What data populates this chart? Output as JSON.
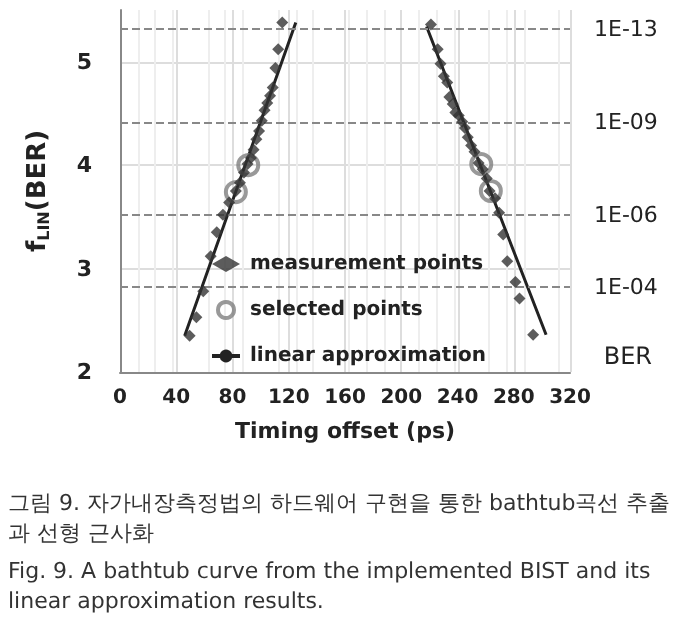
{
  "chart_data": {
    "type": "scatter",
    "xlabel": "Timing offset (ps)",
    "ylabel": "f$_{LIN}$(BER)",
    "y2label": "BER",
    "xlim": [
      0,
      320
    ],
    "xticks": [
      0,
      40,
      80,
      120,
      160,
      200,
      240,
      280,
      320
    ],
    "ylim": [
      2,
      5.5
    ],
    "yticks": [
      2,
      3,
      4,
      5
    ],
    "grid": true,
    "legend": "bottom",
    "series": [
      {
        "name": "measurement points",
        "type": "scatter",
        "marker": "diamond",
        "color": "#333333",
        "x": [
          49.5,
          54.3,
          59.2,
          64.5,
          68.8,
          73.2,
          77.6,
          82.4,
          85.3,
          88.2,
          90.7,
          93.1,
          95.0,
          97.0,
          98.9,
          100.8,
          102.8,
          104.7,
          106.7,
          108.6,
          110.5,
          112.5,
          115.4,
          221.1,
          225.9,
          227.9,
          230.3,
          232.7,
          234.2,
          236.6,
          238.5,
          240.9,
          243.4,
          245.3,
          247.3,
          249.7,
          252.1,
          255.0,
          257.9,
          260.8,
          262.8,
          266.7,
          269.6,
          272.5,
          275.4,
          281.2,
          284.1,
          293.8
        ],
        "values": [
          2.35,
          2.53,
          2.78,
          3.12,
          3.35,
          3.52,
          3.64,
          3.75,
          3.83,
          3.93,
          4.01,
          4.07,
          4.15,
          4.25,
          4.33,
          4.43,
          4.53,
          4.6,
          4.67,
          4.75,
          4.94,
          5.12,
          5.38,
          5.36,
          5.12,
          4.98,
          4.86,
          4.8,
          4.66,
          4.59,
          4.51,
          4.48,
          4.42,
          4.36,
          4.27,
          4.19,
          4.13,
          4.02,
          3.96,
          3.87,
          3.75,
          3.68,
          3.54,
          3.33,
          3.07,
          2.87,
          2.71,
          2.36
        ]
      },
      {
        "name": "selected points",
        "type": "scatter",
        "marker": "circle",
        "color": "#808080",
        "x": [
          82.4,
          91.2,
          256.9,
          263.7
        ],
        "values": [
          3.74,
          4.0,
          4.01,
          3.75
        ]
      },
      {
        "name": "linear approximation",
        "type": "line",
        "marker": "none",
        "color": "#222222",
        "x": [
          46,
          125,
          null,
          218,
          303
        ],
        "values": [
          2.35,
          5.38,
          null,
          5.34,
          2.36
        ]
      }
    ],
    "ref_lines": [
      {
        "axis": "y",
        "value": 5.32,
        "label": "1E-13",
        "color": "#888888",
        "line_style": "dashed"
      },
      {
        "axis": "y",
        "value": 4.42,
        "label": "1E-09",
        "color": "#888888",
        "line_style": "dashed"
      },
      {
        "axis": "y",
        "value": 3.52,
        "label": "1E-06",
        "color": "#888888",
        "line_style": "dashed"
      },
      {
        "axis": "y",
        "value": 2.82,
        "label": "1E-04",
        "color": "#888888",
        "line_style": "dashed"
      }
    ],
    "annotations": [
      "그림 9. 자가내장측정법의 하드웨어 구현을 통한 bathtub곡선 추출과 선형 근사화",
      "Fig. 9. A bathtub curve from the implemented BIST and its linear approximation results."
    ]
  }
}
